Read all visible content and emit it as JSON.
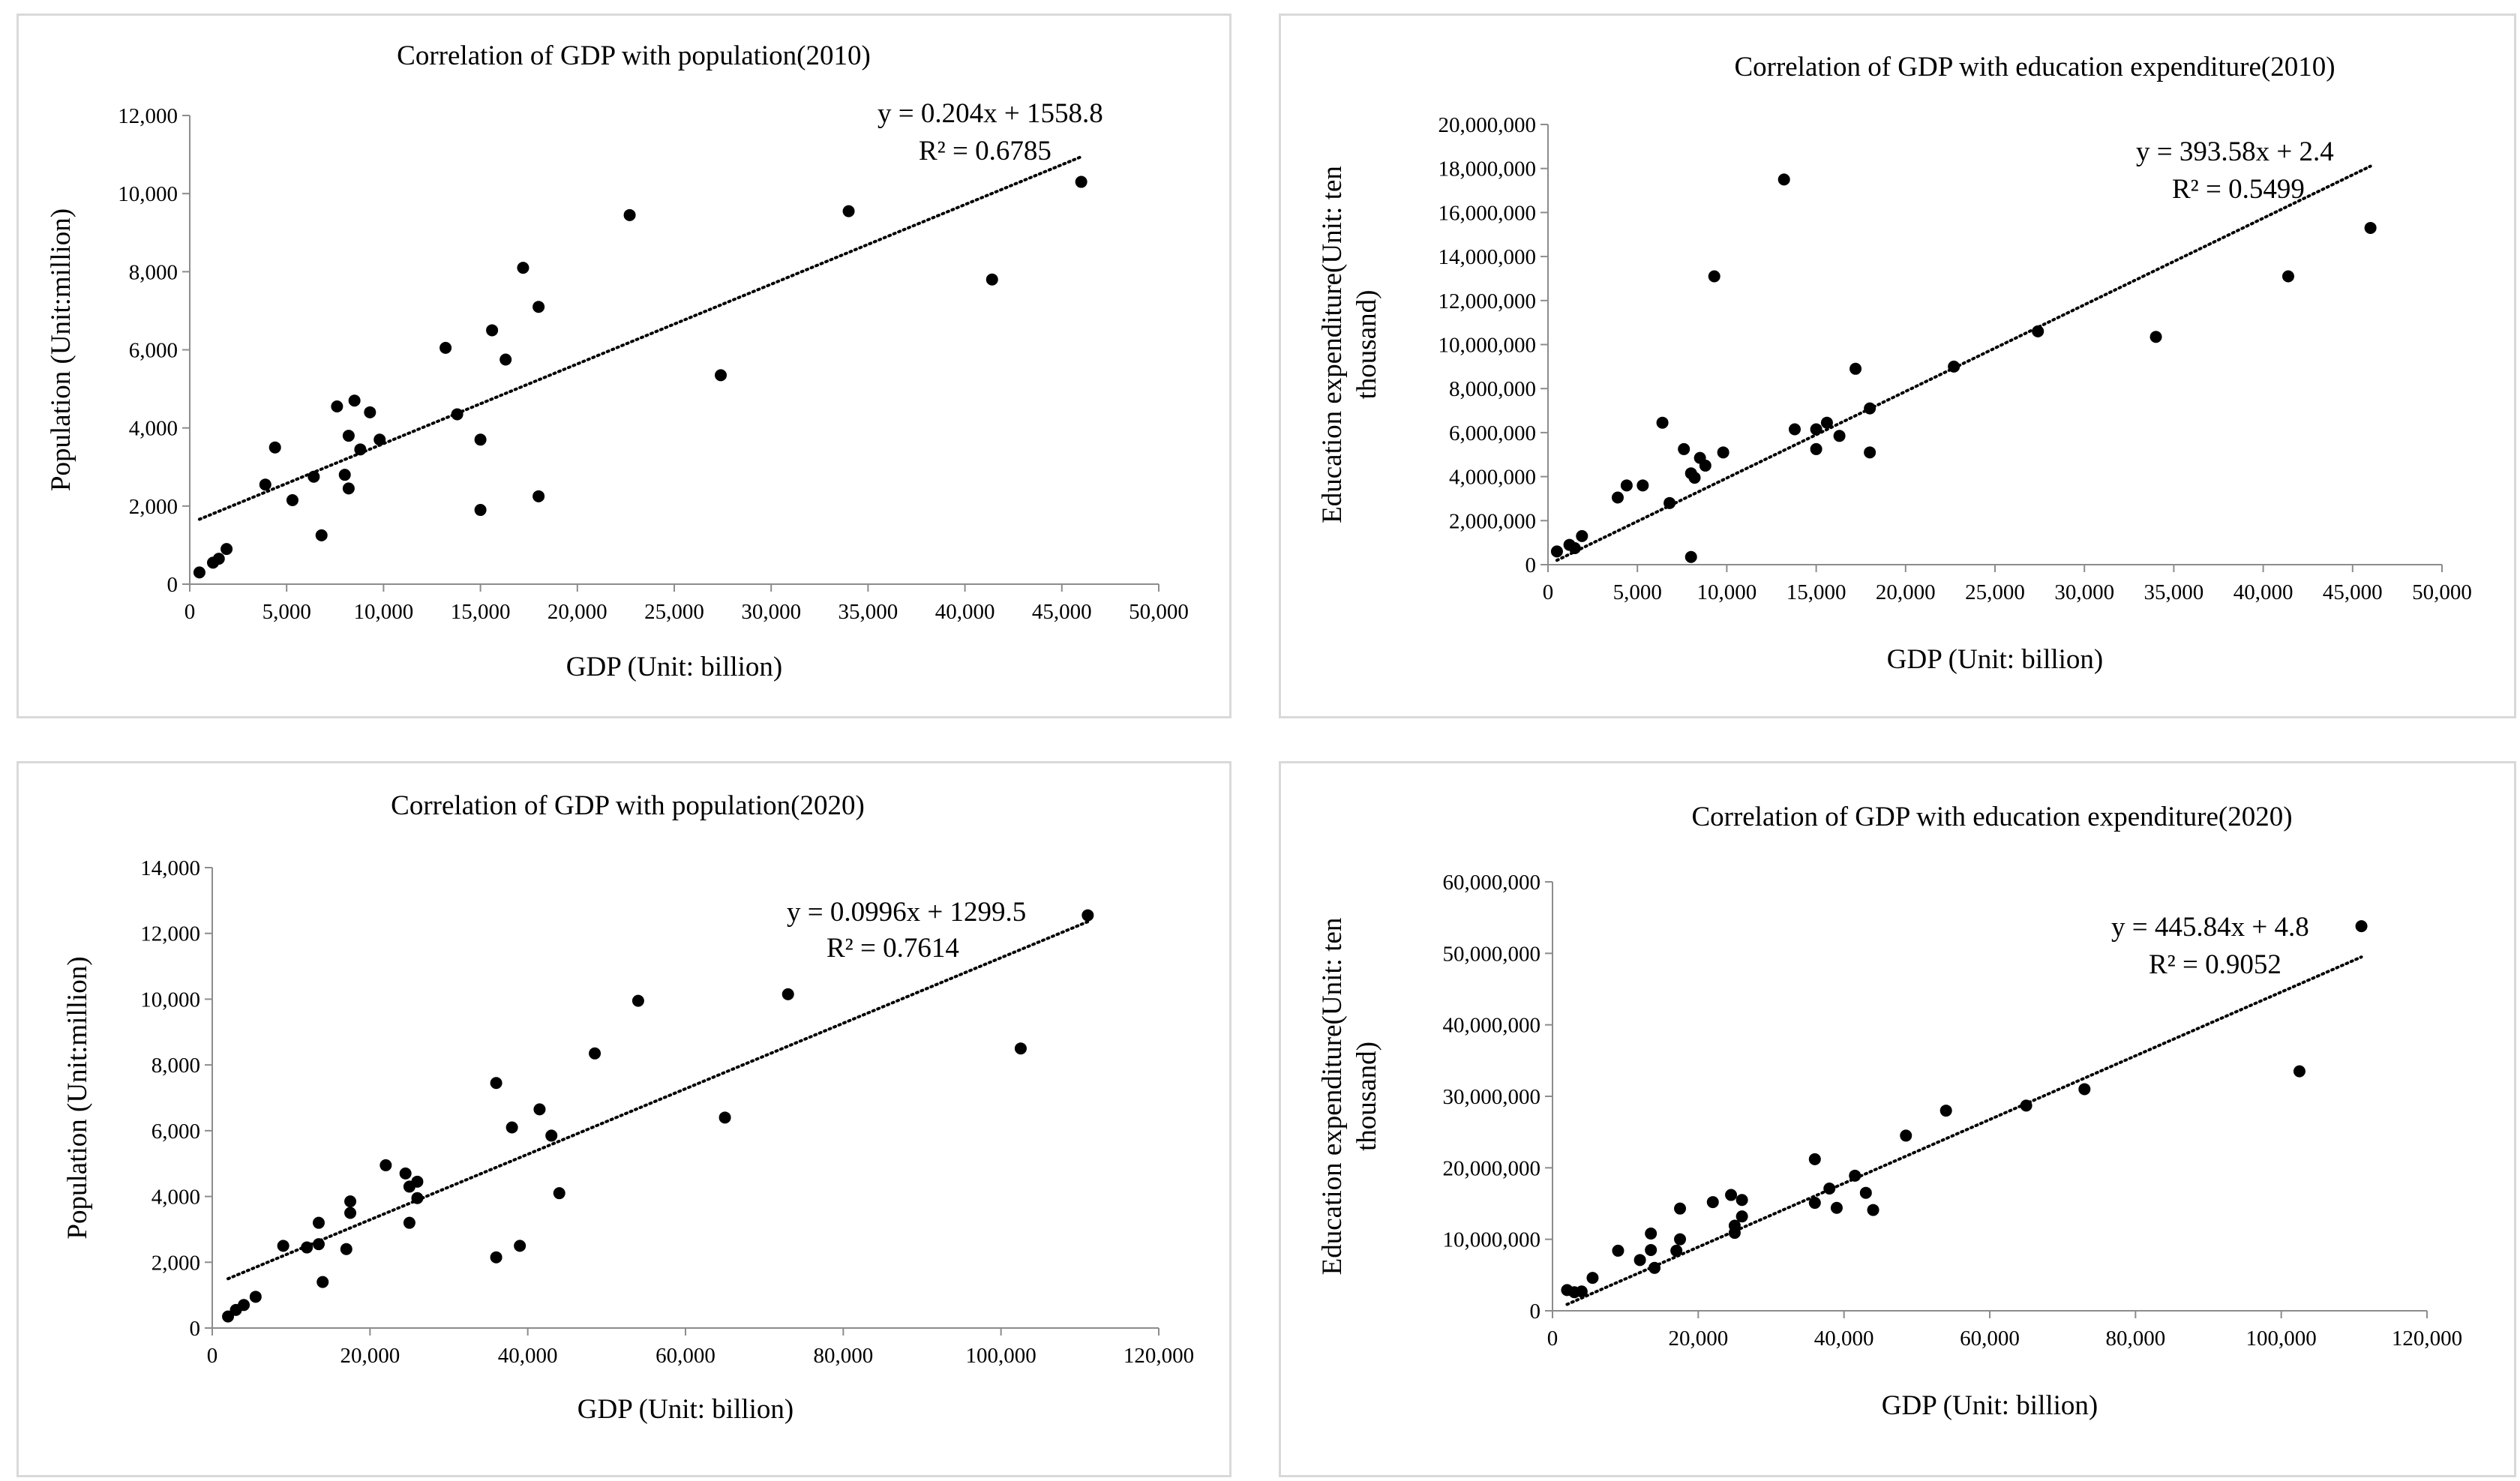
{
  "chart_data": [
    {
      "type": "scatter",
      "title": "Correlation of GDP with population(2010)",
      "xlabel": "GDP (Unit: billion)",
      "ylabel": [
        "Population (Unit:million)"
      ],
      "xlim": [
        0,
        50000
      ],
      "ylim": [
        0,
        12000
      ],
      "xticks": [
        0,
        5000,
        10000,
        15000,
        20000,
        25000,
        30000,
        35000,
        40000,
        45000,
        50000
      ],
      "xtick_labels": [
        "0",
        "5,000",
        "10,000",
        "15,000",
        "20,000",
        "25,000",
        "30,000",
        "35,000",
        "40,000",
        "45,000",
        "50,000"
      ],
      "yticks": [
        0,
        2000,
        4000,
        6000,
        8000,
        10000,
        12000
      ],
      "ytick_labels": [
        "0",
        "2,000",
        "4,000",
        "6,000",
        "8,000",
        "10,000",
        "12,000"
      ],
      "trendline": {
        "slope": 0.204,
        "intercept": 1558.8,
        "x_range": [
          500,
          46000
        ]
      },
      "equation": "y = 0.204x + 1558.8",
      "r2_label": "R² = 0.6785",
      "points": [
        [
          500,
          300
        ],
        [
          1200,
          550
        ],
        [
          1500,
          650
        ],
        [
          1900,
          900
        ],
        [
          3900,
          2550
        ],
        [
          4400,
          3500
        ],
        [
          5300,
          2150
        ],
        [
          6400,
          2750
        ],
        [
          6800,
          1250
        ],
        [
          7600,
          4550
        ],
        [
          8000,
          2800
        ],
        [
          8200,
          3800
        ],
        [
          8200,
          2450
        ],
        [
          8500,
          4700
        ],
        [
          8800,
          3450
        ],
        [
          9300,
          4400
        ],
        [
          9800,
          3700
        ],
        [
          13200,
          6050
        ],
        [
          13800,
          4350
        ],
        [
          15000,
          3700
        ],
        [
          15000,
          1900
        ],
        [
          15600,
          6500
        ],
        [
          16300,
          5750
        ],
        [
          17200,
          8100
        ],
        [
          18000,
          7100
        ],
        [
          18000,
          2250
        ],
        [
          22700,
          9450
        ],
        [
          27400,
          5350
        ],
        [
          34000,
          9550
        ],
        [
          41400,
          7800
        ],
        [
          46000,
          10300
        ]
      ]
    },
    {
      "type": "scatter",
      "title": "Correlation of GDP with  education expenditure(2010)",
      "xlabel": "GDP (Unit: billion)",
      "ylabel": [
        "Education expenditure(Unit: ten",
        "thousand)"
      ],
      "xlim": [
        0,
        50000
      ],
      "ylim": [
        0,
        20000000
      ],
      "xticks": [
        0,
        5000,
        10000,
        15000,
        20000,
        25000,
        30000,
        35000,
        40000,
        45000,
        50000
      ],
      "xtick_labels": [
        "0",
        "5,000",
        "10,000",
        "15,000",
        "20,000",
        "25,000",
        "30,000",
        "35,000",
        "40,000",
        "45,000",
        "50,000"
      ],
      "yticks": [
        0,
        2000000,
        4000000,
        6000000,
        8000000,
        10000000,
        12000000,
        14000000,
        16000000,
        18000000,
        20000000
      ],
      "ytick_labels": [
        "0",
        "2,000,000",
        "4,000,000",
        "6,000,000",
        "8,000,000",
        "10,000,000",
        "12,000,000",
        "14,000,000",
        "16,000,000",
        "18,000,000",
        "20,000,000"
      ],
      "trendline": {
        "slope": 393.58,
        "intercept": 2.4,
        "x_range": [
          500,
          46000
        ]
      },
      "equation": "y = 393.58x + 2.4",
      "r2_label": "R² = 0.5499",
      "points": [
        [
          500,
          600000
        ],
        [
          1200,
          900000
        ],
        [
          1500,
          750000
        ],
        [
          1900,
          1300000
        ],
        [
          3900,
          3050000
        ],
        [
          4400,
          3600000
        ],
        [
          5300,
          3600000
        ],
        [
          6400,
          6450000
        ],
        [
          6800,
          2800000
        ],
        [
          7600,
          5250000
        ],
        [
          8000,
          4150000
        ],
        [
          8000,
          350000
        ],
        [
          8200,
          3950000
        ],
        [
          8500,
          4850000
        ],
        [
          8800,
          4500000
        ],
        [
          9300,
          13100000
        ],
        [
          9800,
          5100000
        ],
        [
          13200,
          17500000
        ],
        [
          13800,
          6150000
        ],
        [
          15000,
          6150000
        ],
        [
          15000,
          5250000
        ],
        [
          15600,
          6450000
        ],
        [
          16300,
          5850000
        ],
        [
          17200,
          8900000
        ],
        [
          18000,
          7100000
        ],
        [
          18000,
          5100000
        ],
        [
          22700,
          9000000
        ],
        [
          27400,
          10600000
        ],
        [
          34000,
          10350000
        ],
        [
          41400,
          13100000
        ],
        [
          46000,
          15300000
        ]
      ]
    },
    {
      "type": "scatter",
      "title": "Correlation of GDP with population(2020)",
      "xlabel": "GDP (Unit: billion)",
      "ylabel": [
        "Population (Unit:million)"
      ],
      "xlim": [
        0,
        120000
      ],
      "ylim": [
        0,
        14000
      ],
      "xticks": [
        0,
        20000,
        40000,
        60000,
        80000,
        100000,
        120000
      ],
      "xtick_labels": [
        "0",
        "20,000",
        "40,000",
        "60,000",
        "80,000",
        "100,000",
        "120,000"
      ],
      "yticks": [
        0,
        2000,
        4000,
        6000,
        8000,
        10000,
        12000,
        14000
      ],
      "ytick_labels": [
        "0",
        "2,000",
        "4,000",
        "6,000",
        "8,000",
        "10,000",
        "12,000",
        "14,000"
      ],
      "trendline": {
        "slope": 0.0996,
        "intercept": 1299.5,
        "x_range": [
          2000,
          111000
        ]
      },
      "equation": "y = 0.0996x + 1299.5",
      "r2_label": "R² = 0.7614",
      "points": [
        [
          2000,
          350
        ],
        [
          3000,
          550
        ],
        [
          4000,
          700
        ],
        [
          5500,
          950
        ],
        [
          9000,
          2500
        ],
        [
          12000,
          2450
        ],
        [
          13500,
          3200
        ],
        [
          13500,
          2550
        ],
        [
          14000,
          1400
        ],
        [
          17000,
          2400
        ],
        [
          17500,
          3850
        ],
        [
          17500,
          3500
        ],
        [
          22000,
          4950
        ],
        [
          24500,
          4700
        ],
        [
          25000,
          4300
        ],
        [
          25000,
          3200
        ],
        [
          26000,
          4450
        ],
        [
          26000,
          3950
        ],
        [
          36000,
          7450
        ],
        [
          36000,
          2150
        ],
        [
          38000,
          6100
        ],
        [
          39000,
          2500
        ],
        [
          41500,
          6650
        ],
        [
          43000,
          5850
        ],
        [
          44000,
          4100
        ],
        [
          48500,
          8350
        ],
        [
          54000,
          9950
        ],
        [
          65000,
          6400
        ],
        [
          73000,
          10150
        ],
        [
          102500,
          8500
        ],
        [
          111000,
          12550
        ]
      ]
    },
    {
      "type": "scatter",
      "title": "Correlation of GDP with  education expenditure(2020)",
      "xlabel": "GDP (Unit: billion)",
      "ylabel": [
        "Education expenditure(Unit: ten",
        "thousand)"
      ],
      "xlim": [
        0,
        120000
      ],
      "ylim": [
        0,
        60000000
      ],
      "xticks": [
        0,
        20000,
        40000,
        60000,
        80000,
        100000,
        120000
      ],
      "xtick_labels": [
        "0",
        "20,000",
        "40,000",
        "60,000",
        "80,000",
        "100,000",
        "120,000"
      ],
      "yticks": [
        0,
        10000000,
        20000000,
        30000000,
        40000000,
        50000000,
        60000000
      ],
      "ytick_labels": [
        "0",
        "10,000,000",
        "20,000,000",
        "30,000,000",
        "40,000,000",
        "50,000,000",
        "60,000,000"
      ],
      "trendline": {
        "slope": 445.84,
        "intercept": 4.8,
        "x_range": [
          2000,
          111000
        ]
      },
      "equation": "y = 445.84x + 4.8",
      "r2_label": "R² = 0.9052",
      "points": [
        [
          2000,
          2900000
        ],
        [
          3000,
          2600000
        ],
        [
          4000,
          2700000
        ],
        [
          5500,
          4600000
        ],
        [
          9000,
          8400000
        ],
        [
          12000,
          7100000
        ],
        [
          13500,
          10800000
        ],
        [
          13500,
          8500000
        ],
        [
          14000,
          6000000
        ],
        [
          17000,
          8400000
        ],
        [
          17500,
          14300000
        ],
        [
          17500,
          10000000
        ],
        [
          22000,
          15200000
        ],
        [
          24500,
          16200000
        ],
        [
          25000,
          11900000
        ],
        [
          25000,
          10900000
        ],
        [
          26000,
          15500000
        ],
        [
          26000,
          13200000
        ],
        [
          36000,
          21200000
        ],
        [
          36000,
          15100000
        ],
        [
          38000,
          17100000
        ],
        [
          39000,
          14400000
        ],
        [
          41500,
          18900000
        ],
        [
          43000,
          16500000
        ],
        [
          44000,
          14100000
        ],
        [
          48500,
          24500000
        ],
        [
          54000,
          28000000
        ],
        [
          65000,
          28700000
        ],
        [
          73000,
          31000000
        ],
        [
          102500,
          33500000
        ],
        [
          111000,
          53800000
        ]
      ]
    }
  ]
}
